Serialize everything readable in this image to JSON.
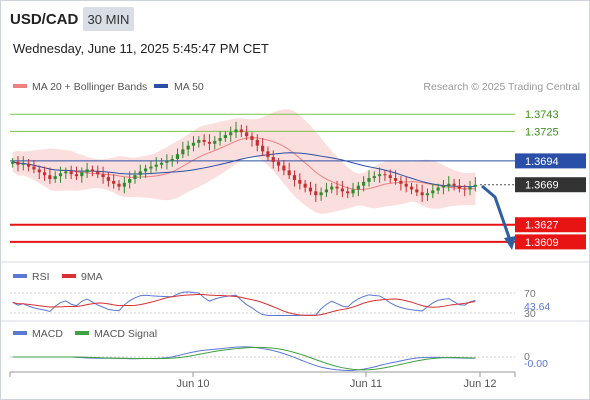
{
  "header": {
    "symbol": "USD/CAD",
    "interval": "30 MIN",
    "datetime": "Wednesday, June 11, 2025 5:45:47 PM CET"
  },
  "legend": {
    "ma20": "MA 20 + Bollinger Bands",
    "ma50": "MA 50",
    "credit": "Research © 2025 Trading Central",
    "rsi": "RSI",
    "rsi_ma": "9MA",
    "macd": "MACD",
    "macd_signal": "MACD Signal"
  },
  "colors": {
    "ma20": "#f08080",
    "ma50": "#2a4fa8",
    "bollinger_fill": "#fbdada",
    "resistance": "#7cc24a",
    "resistance_text": "#3e8e1e",
    "support": "#e81414",
    "current": "#333333",
    "arrow": "#2e5fa0",
    "rsi": "#5b78d2",
    "rsi_ma": "#d93030",
    "macd": "#5b78d2",
    "macd_signal": "#3fa03f",
    "candle_up": "#2e8b2e",
    "candle_down": "#c43030"
  },
  "chart_data": [
    {
      "type": "candlestick",
      "name": "price",
      "x_labels": [
        "Jun 10",
        "Jun 11",
        "Jun 12"
      ],
      "ylim": [
        1.359,
        1.376
      ],
      "levels": [
        {
          "label": "1.3743",
          "value": 1.3743,
          "kind": "resistance"
        },
        {
          "label": "1.3725",
          "value": 1.3725,
          "kind": "resistance"
        },
        {
          "label": "1.3694",
          "value": 1.3694,
          "kind": "pivot"
        },
        {
          "label": "1.3669",
          "value": 1.3669,
          "kind": "current"
        },
        {
          "label": "1.3627",
          "value": 1.3627,
          "kind": "support"
        },
        {
          "label": "1.3609",
          "value": 1.3609,
          "kind": "support"
        }
      ],
      "close": [
        1.3693,
        1.369,
        1.3691,
        1.3688,
        1.3685,
        1.3682,
        1.3679,
        1.3675,
        1.3678,
        1.3681,
        1.3683,
        1.368,
        1.3678,
        1.3682,
        1.3685,
        1.3683,
        1.368,
        1.3677,
        1.3673,
        1.367,
        1.3667,
        1.3671,
        1.3675,
        1.3679,
        1.3683,
        1.3686,
        1.3688,
        1.369,
        1.3692,
        1.3694,
        1.3696,
        1.3701,
        1.3706,
        1.371,
        1.3713,
        1.3716,
        1.3714,
        1.3712,
        1.3715,
        1.3718,
        1.3721,
        1.3724,
        1.3727,
        1.3724,
        1.372,
        1.3716,
        1.371,
        1.3704,
        1.3698,
        1.3693,
        1.3689,
        1.3684,
        1.3679,
        1.3674,
        1.367,
        1.3666,
        1.3662,
        1.3658,
        1.3661,
        1.3664,
        1.3667,
        1.3665,
        1.3662,
        1.366,
        1.3664,
        1.3668,
        1.3672,
        1.3676,
        1.3678,
        1.368,
        1.3679,
        1.3676,
        1.3673,
        1.367,
        1.3667,
        1.3664,
        1.3661,
        1.3658,
        1.366,
        1.3663,
        1.3666,
        1.3668,
        1.367,
        1.3668,
        1.3665,
        1.3664,
        1.3667,
        1.3669
      ]
    },
    {
      "type": "line",
      "name": "rsi",
      "ylim": [
        20,
        80
      ],
      "levels": [
        70,
        30
      ],
      "current_label": "43.64",
      "level_labels": [
        "70",
        "30"
      ]
    },
    {
      "type": "line",
      "name": "macd",
      "current_label": "-0.00",
      "level_labels": [
        "0"
      ]
    }
  ]
}
